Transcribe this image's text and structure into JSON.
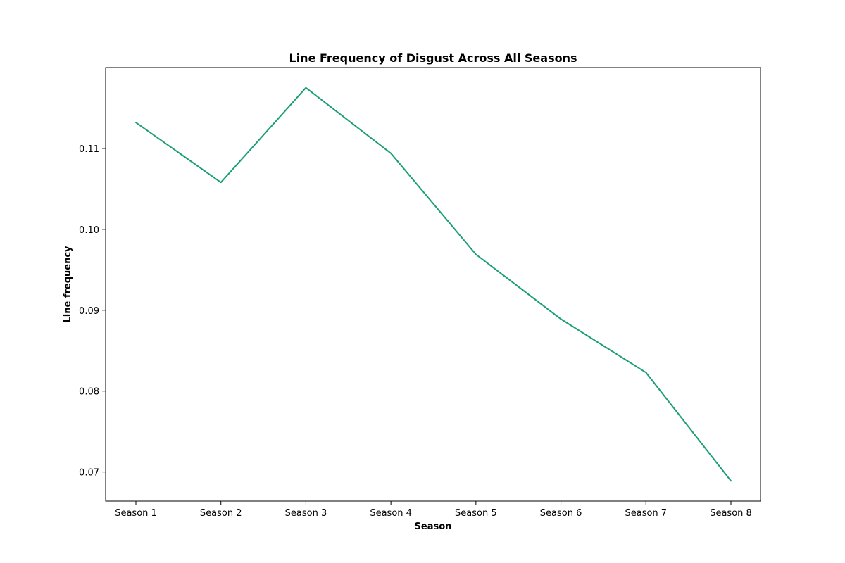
{
  "chart_data": {
    "type": "line",
    "title": "Line Frequency of Disgust Across All Seasons",
    "xlabel": "Season",
    "ylabel": "Line frequency",
    "categories": [
      "Season 1",
      "Season 2",
      "Season 3",
      "Season 4",
      "Season 5",
      "Season 6",
      "Season 7",
      "Season 8"
    ],
    "series": [
      {
        "values": [
          0.1132,
          0.1058,
          0.1175,
          0.1094,
          0.0969,
          0.0889,
          0.0823,
          0.0689
        ]
      }
    ],
    "yticks": [
      0.07,
      0.08,
      0.09,
      0.1,
      0.11
    ],
    "ytick_labels": [
      "0.07",
      "0.08",
      "0.09",
      "0.10",
      "0.11"
    ],
    "ylim": [
      0.0664,
      0.12
    ],
    "grid": false,
    "line_color": "#1a9e77"
  }
}
